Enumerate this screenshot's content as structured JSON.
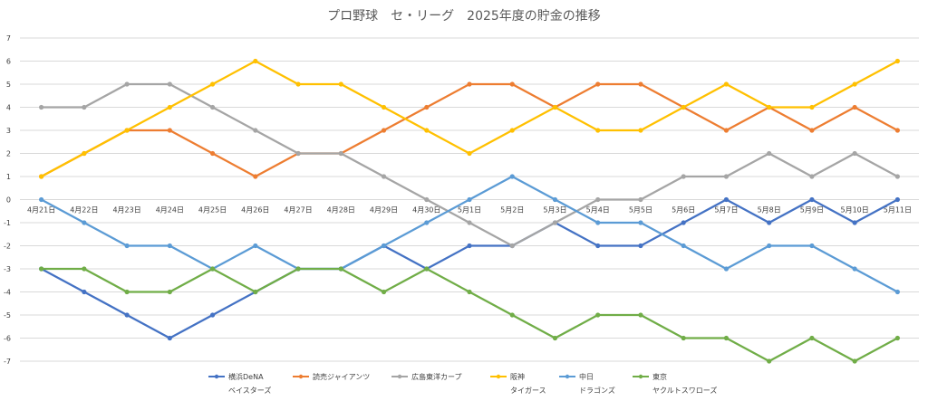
{
  "chart_data": {
    "type": "line",
    "title": "プロ野球　セ・リーグ　2025年度の貯金の推移",
    "xlabel": "",
    "ylabel": "",
    "categories": [
      "4月21日",
      "4月22日",
      "4月23日",
      "4月24日",
      "4月25日",
      "4月26日",
      "4月27日",
      "4月28日",
      "4月29日",
      "4月30日",
      "5月1日",
      "5月2日",
      "5月3日",
      "5月4日",
      "5月5日",
      "5月6日",
      "5月7日",
      "5月8日",
      "5月9日",
      "5月10日",
      "5月11日"
    ],
    "ylim": [
      -7,
      7
    ],
    "yticks": [
      -7,
      -6,
      -5,
      -4,
      -3,
      -2,
      -1,
      0,
      1,
      2,
      3,
      4,
      5,
      6,
      7
    ],
    "grid": true,
    "legend_position": "bottom",
    "series": [
      {
        "name": "横浜DeNA",
        "name2": "ベイスターズ",
        "color": "#4472C4",
        "values": [
          -3,
          -4,
          -5,
          -6,
          -5,
          -4,
          -3,
          -3,
          -2,
          -3,
          -2,
          -2,
          -1,
          -2,
          -2,
          -1,
          0,
          -1,
          0,
          -1,
          0
        ]
      },
      {
        "name": "読売ジャイアンツ",
        "name2": "",
        "color": "#ED7D31",
        "values": [
          1,
          2,
          3,
          3,
          2,
          1,
          2,
          2,
          3,
          4,
          5,
          5,
          4,
          5,
          5,
          4,
          3,
          4,
          3,
          4,
          3
        ]
      },
      {
        "name": "広島東洋カープ",
        "name2": "",
        "color": "#A5A5A5",
        "values": [
          4,
          4,
          5,
          5,
          4,
          3,
          2,
          2,
          1,
          0,
          -1,
          -2,
          -1,
          0,
          0,
          1,
          1,
          2,
          1,
          2,
          1
        ]
      },
      {
        "name": "阪神",
        "name2": "タイガース",
        "color": "#FFC000",
        "values": [
          1,
          2,
          3,
          4,
          5,
          6,
          5,
          5,
          4,
          3,
          2,
          3,
          4,
          3,
          3,
          4,
          5,
          4,
          4,
          5,
          6
        ]
      },
      {
        "name": "中日",
        "name2": "ドラゴンズ",
        "color": "#5B9BD5",
        "values": [
          0,
          -1,
          -2,
          -2,
          -3,
          -2,
          -3,
          -3,
          -2,
          -1,
          0,
          1,
          0,
          -1,
          -1,
          -2,
          -3,
          -2,
          -2,
          -3,
          -4
        ]
      },
      {
        "name": "東京",
        "name2": "ヤクルトスワローズ",
        "color": "#70AD47",
        "values": [
          -3,
          -3,
          -4,
          -4,
          -3,
          -4,
          -3,
          -3,
          -4,
          -3,
          -4,
          -5,
          -6,
          -5,
          -5,
          -6,
          -6,
          -7,
          -6,
          -7,
          -6
        ]
      }
    ]
  }
}
